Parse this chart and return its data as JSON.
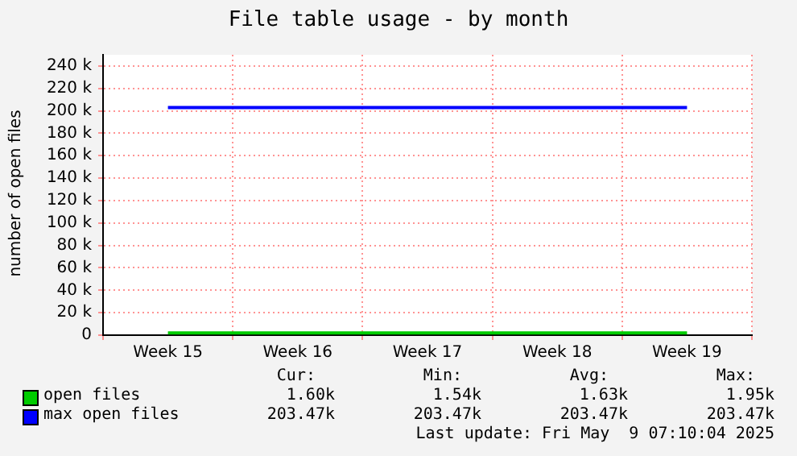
{
  "chart_data": {
    "type": "line",
    "title": "File table usage - by month",
    "ylabel": "number of open files",
    "categories": [
      "Week 15",
      "Week 16",
      "Week 17",
      "Week 18",
      "Week 19"
    ],
    "series": [
      {
        "name": "open files",
        "color": "#00cc00",
        "values": [
          2000,
          2000,
          2000,
          2000,
          2000
        ]
      },
      {
        "name": "max open files",
        "color": "#0000ff",
        "values": [
          203000,
          203000,
          203000,
          203000,
          203000
        ]
      }
    ],
    "ylim": [
      0,
      250000
    ],
    "yticks": [
      0,
      {
        "value": 20000,
        "label": "20 k"
      },
      {
        "value": 40000,
        "label": "40 k"
      },
      {
        "value": 60000,
        "label": "60 k"
      },
      {
        "value": 80000,
        "label": "80 k"
      },
      {
        "value": 100000,
        "label": "100 k"
      },
      {
        "value": 120000,
        "label": "120 k"
      },
      {
        "value": 140000,
        "label": "140 k"
      },
      {
        "value": 160000,
        "label": "160 k"
      },
      {
        "value": 180000,
        "label": "180 k"
      },
      {
        "value": 200000,
        "label": "200 k"
      },
      {
        "value": 220000,
        "label": "220 k"
      },
      {
        "value": 240000,
        "label": "240 k"
      }
    ],
    "grid": true,
    "legend": "bottom left",
    "marker": "none",
    "line_style": "solid",
    "annotations": [
      "Cur:",
      "Min:",
      "Avg:",
      "Max:",
      "1.60k",
      "1.54k",
      "1.63k",
      "1.95k",
      "203.47k",
      "203.47k",
      "203.47k",
      "203.47k",
      "Last update: Fri May  9 07:10:04 2025"
    ]
  }
}
